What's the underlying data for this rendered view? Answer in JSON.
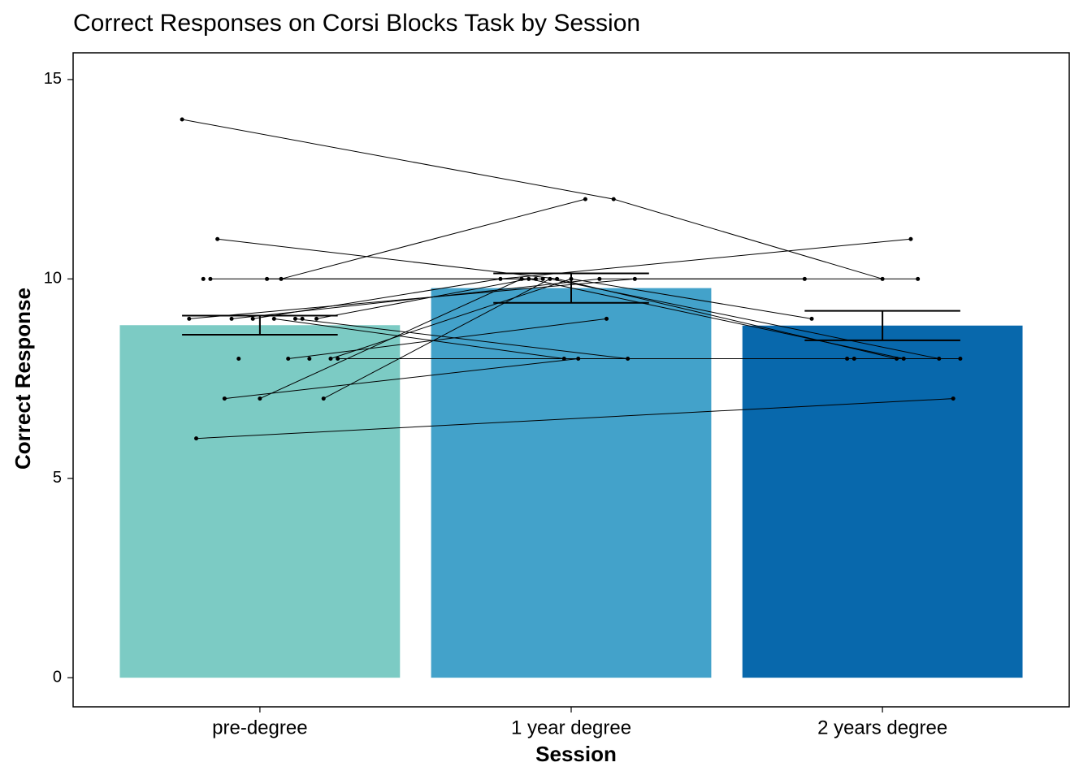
{
  "chart_data": {
    "type": "bar",
    "title": "Correct Responses on Corsi Blocks Task by Session",
    "x_label": "Session",
    "y_label": "Correct Response",
    "categories": [
      "pre-degree",
      "1 year degree",
      "2 years degree"
    ],
    "values": [
      8.84,
      9.77,
      8.83
    ],
    "errors": [
      0.24,
      0.37,
      0.37
    ],
    "colors": [
      "#7ccbc4",
      "#43a2ca",
      "#0868ac"
    ],
    "subjects": [
      [
        14,
        12,
        10
      ],
      [
        10,
        12,
        null
      ],
      [
        11,
        10,
        8
      ],
      [
        9,
        10,
        8
      ],
      [
        9,
        10,
        11
      ],
      [
        9,
        10,
        10
      ],
      [
        8,
        9,
        null
      ],
      [
        7,
        8,
        null
      ],
      [
        7,
        10,
        8
      ],
      [
        7,
        10,
        null
      ],
      [
        6,
        null,
        7
      ],
      [
        9,
        8,
        8
      ],
      [
        9,
        10,
        10
      ],
      [
        8,
        10,
        9
      ],
      [
        10,
        10,
        null
      ],
      [
        10,
        null,
        null
      ],
      [
        9,
        null,
        null
      ],
      [
        8,
        null,
        null
      ],
      [
        8,
        null,
        8
      ],
      [
        9,
        8,
        8
      ],
      [
        10,
        10,
        null
      ],
      [
        8,
        null,
        null
      ]
    ],
    "ylim": [
      -0.73,
      15.67
    ],
    "yticks": [
      0,
      5,
      10,
      15
    ]
  }
}
